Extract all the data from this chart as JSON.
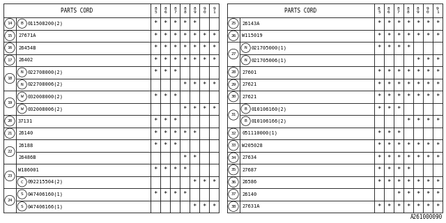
{
  "title": "A261000090",
  "col_headers": [
    "8\n5",
    "8\n6",
    "8\n7",
    "8\n8",
    "8\n9",
    "9\n0",
    "9\n1"
  ],
  "left_table": {
    "rows": [
      {
        "ref": "14",
        "prefix": "B",
        "part": "011508200(2)",
        "marks": [
          1,
          1,
          1,
          1,
          1,
          0,
          0
        ]
      },
      {
        "ref": "15",
        "prefix": "",
        "part": "27671A",
        "marks": [
          1,
          1,
          1,
          1,
          1,
          1,
          1
        ]
      },
      {
        "ref": "16",
        "prefix": "",
        "part": "26454B",
        "marks": [
          1,
          1,
          1,
          1,
          1,
          1,
          1
        ]
      },
      {
        "ref": "17",
        "prefix": "",
        "part": "26402",
        "marks": [
          1,
          1,
          1,
          1,
          1,
          1,
          1
        ]
      },
      {
        "ref": "18",
        "prefix": "N",
        "part": "022708000(2)",
        "marks": [
          1,
          1,
          1,
          0,
          0,
          0,
          0
        ]
      },
      {
        "ref": "18",
        "prefix": "N",
        "part": "022708006(2)",
        "marks": [
          0,
          0,
          0,
          1,
          1,
          1,
          1
        ]
      },
      {
        "ref": "19",
        "prefix": "W",
        "part": "032008000(2)",
        "marks": [
          1,
          1,
          1,
          0,
          0,
          0,
          0
        ]
      },
      {
        "ref": "19",
        "prefix": "W",
        "part": "032008006(2)",
        "marks": [
          0,
          0,
          0,
          1,
          1,
          1,
          1
        ]
      },
      {
        "ref": "20",
        "prefix": "",
        "part": "37131",
        "marks": [
          1,
          1,
          1,
          0,
          0,
          0,
          0
        ]
      },
      {
        "ref": "21",
        "prefix": "",
        "part": "26140",
        "marks": [
          1,
          1,
          1,
          1,
          1,
          0,
          0
        ]
      },
      {
        "ref": "22",
        "prefix": "",
        "part": "26188",
        "marks": [
          1,
          1,
          1,
          0,
          0,
          0,
          0
        ]
      },
      {
        "ref": "22",
        "prefix": "",
        "part": "26486B",
        "marks": [
          0,
          0,
          0,
          1,
          1,
          0,
          0
        ]
      },
      {
        "ref": "23",
        "prefix": "",
        "part": "W186001",
        "marks": [
          1,
          1,
          1,
          1,
          0,
          0,
          0
        ]
      },
      {
        "ref": "23",
        "prefix": "C",
        "part": "092215504(2)",
        "marks": [
          0,
          0,
          0,
          0,
          1,
          1,
          1
        ]
      },
      {
        "ref": "24",
        "prefix": "S",
        "part": "047406160(1)",
        "marks": [
          1,
          1,
          1,
          1,
          0,
          0,
          0
        ]
      },
      {
        "ref": "24",
        "prefix": "S",
        "part": "047406166(1)",
        "marks": [
          0,
          0,
          0,
          0,
          1,
          1,
          1
        ]
      }
    ]
  },
  "right_table": {
    "rows": [
      {
        "ref": "25",
        "prefix": "",
        "part": "26143A",
        "marks": [
          1,
          1,
          1,
          1,
          1,
          1,
          1
        ]
      },
      {
        "ref": "26",
        "prefix": "",
        "part": "W115019",
        "marks": [
          1,
          1,
          1,
          1,
          1,
          1,
          1
        ]
      },
      {
        "ref": "27",
        "prefix": "N",
        "part": "021705000(1)",
        "marks": [
          1,
          1,
          1,
          1,
          0,
          0,
          0
        ]
      },
      {
        "ref": "27",
        "prefix": "N",
        "part": "021705006(1)",
        "marks": [
          0,
          0,
          0,
          0,
          1,
          1,
          1
        ]
      },
      {
        "ref": "28",
        "prefix": "",
        "part": "27601",
        "marks": [
          1,
          1,
          1,
          1,
          1,
          1,
          1
        ]
      },
      {
        "ref": "29",
        "prefix": "",
        "part": "27621",
        "marks": [
          1,
          1,
          1,
          1,
          1,
          1,
          1
        ]
      },
      {
        "ref": "30",
        "prefix": "",
        "part": "27621",
        "marks": [
          1,
          1,
          1,
          1,
          1,
          1,
          1
        ]
      },
      {
        "ref": "31",
        "prefix": "B",
        "part": "010106160(2)",
        "marks": [
          1,
          1,
          1,
          0,
          0,
          0,
          0
        ]
      },
      {
        "ref": "31",
        "prefix": "B",
        "part": "010106166(2)",
        "marks": [
          0,
          0,
          0,
          1,
          1,
          1,
          1
        ]
      },
      {
        "ref": "32",
        "prefix": "",
        "part": "051110000(1)",
        "marks": [
          1,
          1,
          1,
          0,
          0,
          0,
          0
        ]
      },
      {
        "ref": "33",
        "prefix": "",
        "part": "W205028",
        "marks": [
          1,
          1,
          1,
          1,
          1,
          1,
          1
        ]
      },
      {
        "ref": "34",
        "prefix": "",
        "part": "27634",
        "marks": [
          1,
          1,
          1,
          1,
          1,
          1,
          1
        ]
      },
      {
        "ref": "35",
        "prefix": "",
        "part": "27687",
        "marks": [
          1,
          1,
          1,
          1,
          0,
          0,
          0
        ]
      },
      {
        "ref": "36",
        "prefix": "",
        "part": "26586",
        "marks": [
          1,
          1,
          1,
          1,
          1,
          1,
          1
        ]
      },
      {
        "ref": "37",
        "prefix": "",
        "part": "26140",
        "marks": [
          0,
          0,
          1,
          1,
          1,
          1,
          1
        ]
      },
      {
        "ref": "38",
        "prefix": "",
        "part": "27631A",
        "marks": [
          1,
          1,
          1,
          1,
          1,
          1,
          1
        ]
      }
    ]
  },
  "bg_color": "#ffffff",
  "line_color": "#000000",
  "text_color": "#000000",
  "font_size": 5.0,
  "header_font_size": 5.5,
  "year_font_size": 4.5
}
